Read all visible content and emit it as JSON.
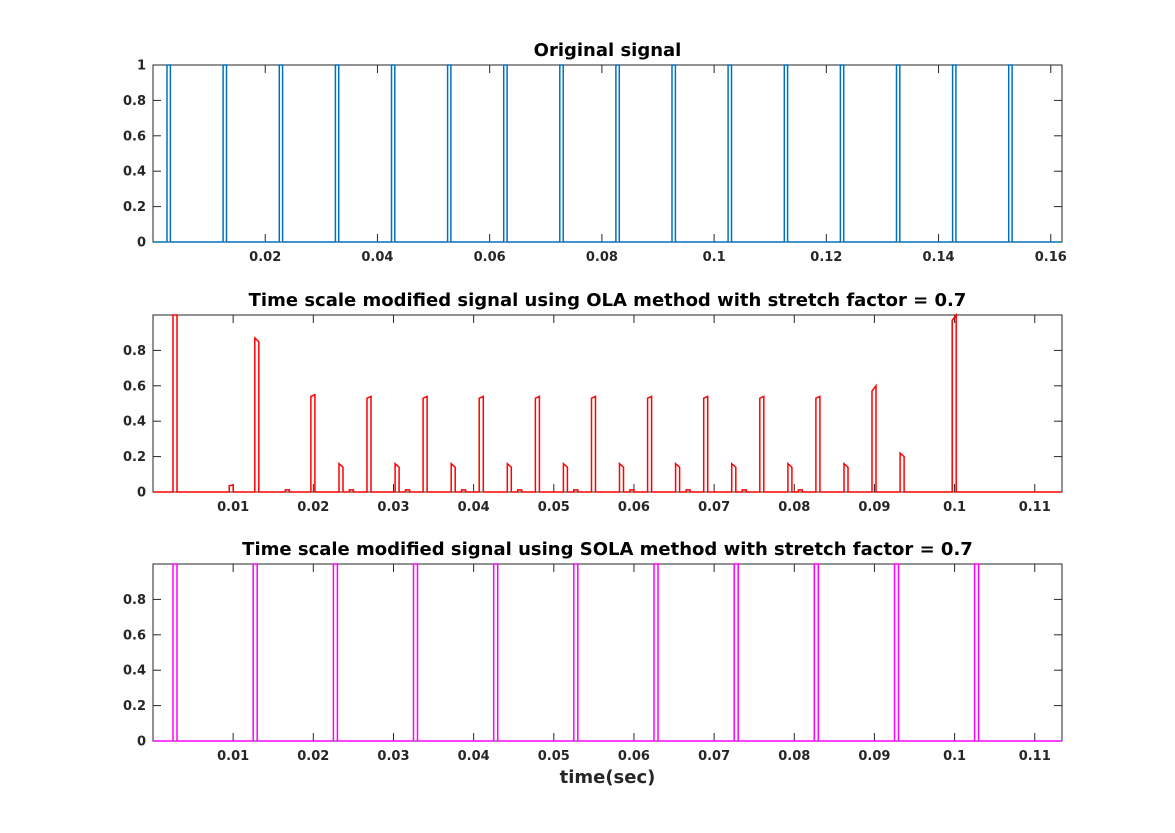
{
  "chart_data": [
    {
      "type": "line",
      "title": "Original signal",
      "xlabel": "",
      "ylabel": "",
      "xlim": [
        0,
        0.162
      ],
      "ylim": [
        0,
        1
      ],
      "xticks": [
        "0.02",
        "0.04",
        "0.06",
        "0.08",
        "0.1",
        "0.12",
        "0.14",
        "0.16"
      ],
      "yticks": [
        "0",
        "0.2",
        "0.4",
        "0.6",
        "0.8",
        "1"
      ],
      "grid": false,
      "series": [
        {
          "color": "#0072BD",
          "pulse_period": 0.01,
          "pulse_starts": [
            0.0025,
            0.0125,
            0.0225,
            0.0325,
            0.0425,
            0.0525,
            0.0625,
            0.0725,
            0.0825,
            0.0925,
            0.1025,
            0.1125,
            0.1225,
            0.1325,
            0.1425,
            0.1525
          ],
          "pulse_width": 0.0006,
          "pulse_heights": [
            1,
            1,
            1,
            1,
            1,
            1,
            1,
            1,
            1,
            1,
            1,
            1,
            1,
            1,
            1,
            1
          ]
        }
      ]
    },
    {
      "type": "line",
      "title": "Time scale modified signal using OLA method with stretch factor = 0.7",
      "xlabel": "",
      "ylabel": "",
      "xlim": [
        0,
        0.1134
      ],
      "ylim": [
        0,
        1
      ],
      "xticks": [
        "0.01",
        "0.02",
        "0.03",
        "0.04",
        "0.05",
        "0.06",
        "0.07",
        "0.08",
        "0.09",
        "0.1",
        "0.11"
      ],
      "yticks": [
        "0",
        "0.2",
        "0.4",
        "0.6",
        "0.8"
      ],
      "grid": false,
      "series": [
        {
          "color": "#FF0000",
          "pulses": [
            {
              "x": 0.0025,
              "h1": 1.0,
              "h2": 1.0
            },
            {
              "x": 0.0095,
              "h1": 0.035,
              "h2": 0.04
            },
            {
              "x": 0.0127,
              "h1": 0.87,
              "h2": 0.85
            },
            {
              "x": 0.0165,
              "h1": 0.012,
              "h2": 0.012
            },
            {
              "x": 0.0197,
              "h1": 0.54,
              "h2": 0.55
            },
            {
              "x": 0.0232,
              "h1": 0.16,
              "h2": 0.14
            },
            {
              "x": 0.0245,
              "h1": 0.012,
              "h2": 0.012
            },
            {
              "x": 0.0267,
              "h1": 0.53,
              "h2": 0.54
            },
            {
              "x": 0.0302,
              "h1": 0.16,
              "h2": 0.14
            },
            {
              "x": 0.0315,
              "h1": 0.012,
              "h2": 0.012
            },
            {
              "x": 0.0337,
              "h1": 0.53,
              "h2": 0.54
            },
            {
              "x": 0.0372,
              "h1": 0.16,
              "h2": 0.14
            },
            {
              "x": 0.0385,
              "h1": 0.012,
              "h2": 0.012
            },
            {
              "x": 0.0407,
              "h1": 0.53,
              "h2": 0.54
            },
            {
              "x": 0.0442,
              "h1": 0.16,
              "h2": 0.14
            },
            {
              "x": 0.0455,
              "h1": 0.012,
              "h2": 0.012
            },
            {
              "x": 0.0477,
              "h1": 0.53,
              "h2": 0.54
            },
            {
              "x": 0.0512,
              "h1": 0.16,
              "h2": 0.14
            },
            {
              "x": 0.0525,
              "h1": 0.012,
              "h2": 0.012
            },
            {
              "x": 0.0547,
              "h1": 0.53,
              "h2": 0.54
            },
            {
              "x": 0.0582,
              "h1": 0.16,
              "h2": 0.14
            },
            {
              "x": 0.0595,
              "h1": 0.012,
              "h2": 0.012
            },
            {
              "x": 0.0617,
              "h1": 0.53,
              "h2": 0.54
            },
            {
              "x": 0.0652,
              "h1": 0.16,
              "h2": 0.14
            },
            {
              "x": 0.0665,
              "h1": 0.012,
              "h2": 0.012
            },
            {
              "x": 0.0687,
              "h1": 0.53,
              "h2": 0.54
            },
            {
              "x": 0.0722,
              "h1": 0.16,
              "h2": 0.14
            },
            {
              "x": 0.0735,
              "h1": 0.012,
              "h2": 0.012
            },
            {
              "x": 0.0757,
              "h1": 0.53,
              "h2": 0.54
            },
            {
              "x": 0.0792,
              "h1": 0.16,
              "h2": 0.14
            },
            {
              "x": 0.0805,
              "h1": 0.012,
              "h2": 0.012
            },
            {
              "x": 0.0827,
              "h1": 0.53,
              "h2": 0.54
            },
            {
              "x": 0.0862,
              "h1": 0.16,
              "h2": 0.14
            },
            {
              "x": 0.0897,
              "h1": 0.57,
              "h2": 0.6
            },
            {
              "x": 0.0932,
              "h1": 0.22,
              "h2": 0.2
            },
            {
              "x": 0.0997,
              "h1": 0.97,
              "h2": 1.0
            }
          ],
          "pulse_width": 0.0005
        }
      ]
    },
    {
      "type": "line",
      "title": "Time scale modified signal using SOLA method with stretch factor = 0.7",
      "xlabel": "time(sec)",
      "ylabel": "",
      "xlim": [
        0,
        0.1134
      ],
      "ylim": [
        0,
        1
      ],
      "xticks": [
        "0.01",
        "0.02",
        "0.03",
        "0.04",
        "0.05",
        "0.06",
        "0.07",
        "0.08",
        "0.09",
        "0.1",
        "0.11"
      ],
      "yticks": [
        "0",
        "0.2",
        "0.4",
        "0.6",
        "0.8"
      ],
      "grid": false,
      "series": [
        {
          "color": "#FF00FF",
          "pulse_starts": [
            0.0025,
            0.0125,
            0.0225,
            0.0325,
            0.0425,
            0.0525,
            0.0625,
            0.0725,
            0.0825,
            0.0925,
            0.1025
          ],
          "pulse_width": 0.0005,
          "pulse_heights": [
            1,
            1,
            1,
            1,
            1,
            1,
            1,
            1,
            1,
            1,
            1
          ]
        }
      ]
    }
  ]
}
